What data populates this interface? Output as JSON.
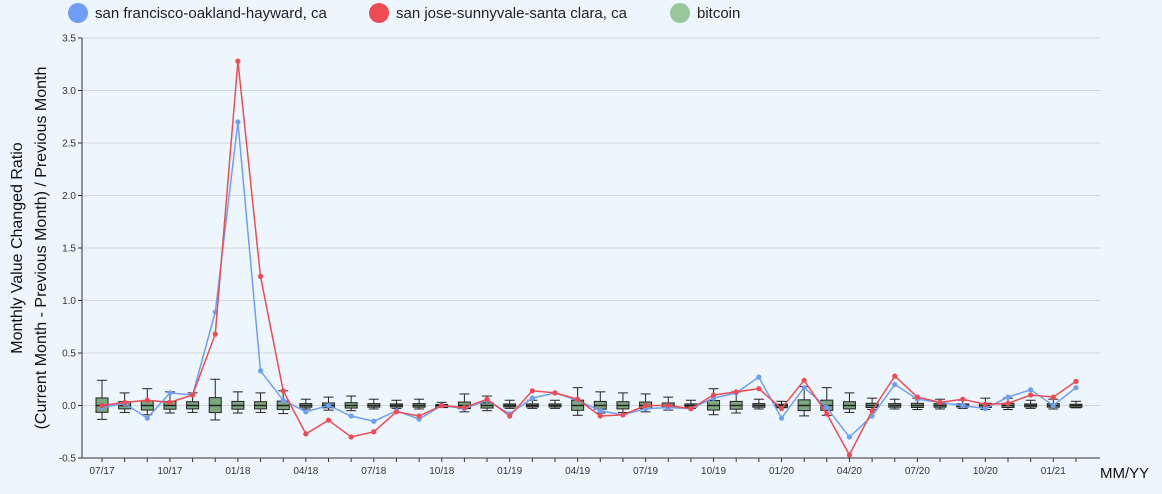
{
  "chart_data": {
    "type": "line",
    "ylabel_line1": "Monthly Value Changed Ratio",
    "ylabel_line2": "(Current Month - Previous Month) / Previous Month",
    "xlabel": "MM/YY",
    "ylim": [
      -0.5,
      3.5
    ],
    "yticks": [
      -0.5,
      0.0,
      0.5,
      1.0,
      1.5,
      2.0,
      2.5,
      3.0,
      3.5
    ],
    "grid": true,
    "legend_position": "top-left",
    "x_tick_labels": [
      "07/17",
      "10/17",
      "01/18",
      "04/18",
      "07/18",
      "10/18",
      "01/19",
      "04/19",
      "07/19",
      "10/19",
      "01/20",
      "04/20",
      "07/20",
      "10/20",
      "01/21"
    ],
    "months": [
      "07/17",
      "08/17",
      "09/17",
      "10/17",
      "11/17",
      "12/17",
      "01/18",
      "02/18",
      "03/18",
      "04/18",
      "05/18",
      "06/18",
      "07/18",
      "08/18",
      "09/18",
      "10/18",
      "11/18",
      "12/18",
      "01/19",
      "02/19",
      "03/19",
      "04/19",
      "05/19",
      "06/19",
      "07/19",
      "08/19",
      "09/19",
      "10/19",
      "11/19",
      "12/19",
      "01/20",
      "02/20",
      "03/20",
      "04/20",
      "05/20",
      "06/20",
      "07/20",
      "08/20",
      "09/20",
      "10/20",
      "11/20",
      "12/20",
      "01/21",
      "02/21"
    ],
    "series": [
      {
        "name": "san francisco-oakland-hayward, ca",
        "color": "#6f9ff5",
        "values": [
          -0.02,
          0.02,
          -0.12,
          0.12,
          0.1,
          0.89,
          2.7,
          0.33,
          0.05,
          -0.06,
          0.0,
          -0.1,
          -0.15,
          -0.05,
          -0.13,
          0.0,
          -0.03,
          0.05,
          -0.08,
          0.07,
          0.12,
          0.05,
          -0.05,
          -0.09,
          -0.03,
          -0.02,
          -0.03,
          0.07,
          0.12,
          0.27,
          -0.12,
          0.17,
          -0.02,
          -0.3,
          -0.1,
          0.2,
          0.06,
          0.03,
          0.0,
          -0.03,
          0.08,
          0.15,
          0.0,
          0.17
        ]
      },
      {
        "name": "san jose-sunnyvale-santa clara, ca",
        "color": "#ee4b55",
        "values": [
          0.0,
          0.03,
          0.05,
          0.03,
          0.1,
          0.68,
          3.28,
          1.23,
          0.14,
          -0.27,
          -0.14,
          -0.3,
          -0.25,
          -0.06,
          -0.1,
          0.0,
          -0.02,
          0.06,
          -0.1,
          0.14,
          0.12,
          0.06,
          -0.1,
          -0.09,
          0.0,
          0.0,
          -0.03,
          0.1,
          0.13,
          0.16,
          -0.03,
          0.24,
          -0.08,
          -0.47,
          -0.05,
          0.28,
          0.08,
          0.03,
          0.06,
          0.01,
          0.02,
          0.1,
          0.08,
          0.23
        ]
      },
      {
        "name": "bitcoin",
        "color": "#98c79a",
        "box_fill": "#7da77f"
      }
    ]
  }
}
